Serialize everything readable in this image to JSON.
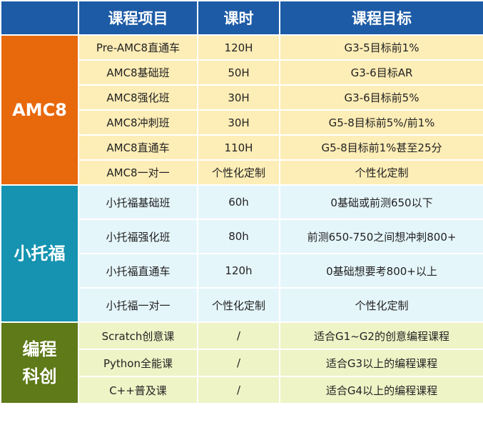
{
  "header": {
    "col1": "课程项目",
    "col2": "课时",
    "col3": "课程目标"
  },
  "colors": {
    "header": "#1d5ba6"
  },
  "groups": [
    {
      "name": "AMC8",
      "color": "#e8680c",
      "row_bg": "#fdedb6",
      "row_height": 35,
      "rows": [
        [
          "Pre-AMC8直通车",
          "120H",
          "G3-5目标前1%"
        ],
        [
          "AMC8基础班",
          "50H",
          "G3-6目标AR"
        ],
        [
          "AMC8强化班",
          "30H",
          "G3-6目标前5%"
        ],
        [
          "AMC8冲刺班",
          "30H",
          "G5-8目标前5%/前1%"
        ],
        [
          "AMC8直通车",
          "110H",
          "G5-8目标前1%甚至25分"
        ],
        [
          "AMC8一对一",
          "个性化定制",
          "个性化定制"
        ]
      ]
    },
    {
      "name": "小托福",
      "color": "#1593b1",
      "row_bg": "#e5f6fb",
      "row_height": 48,
      "rows": [
        [
          "小托福基础班",
          "60h",
          "0基础或前测650以下"
        ],
        [
          "小托福强化班",
          "80h",
          "前测650-750之间想冲刺800+"
        ],
        [
          "小托福直通车",
          "120h",
          "0基础想要考800+以上"
        ],
        [
          "小托福一对一",
          "个性化定制",
          "个性化定制"
        ]
      ]
    },
    {
      "name": "编程\n科创",
      "color": "#5e7a19",
      "row_bg": "#eef4c6",
      "row_height": 38,
      "rows": [
        [
          "Scratch创意课",
          "/",
          "适合G1~G2的创意编程课程"
        ],
        [
          "Python全能课",
          "/",
          "适合G3以上的编程课程"
        ],
        [
          "C++普及课",
          "/",
          "适合G4以上的编程课程"
        ]
      ]
    }
  ]
}
